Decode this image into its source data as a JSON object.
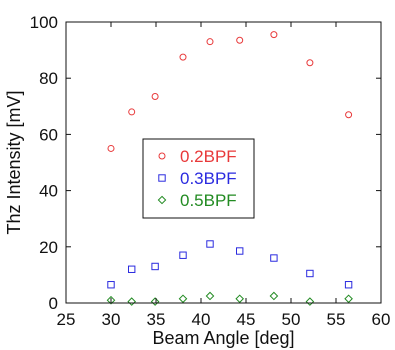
{
  "chart_data": {
    "type": "scatter",
    "title": "",
    "xlabel": "Beam Angle [deg]",
    "ylabel": "Thz Intensity [mV]",
    "xlim": [
      25,
      60
    ],
    "ylim": [
      0,
      100
    ],
    "xticks": [
      25,
      30,
      35,
      40,
      45,
      50,
      55,
      60
    ],
    "yticks": [
      0,
      20,
      40,
      60,
      80,
      100
    ],
    "grid": false,
    "legend_position": "center-left",
    "series": [
      {
        "name": "0.2BPF",
        "marker": "circle",
        "color": "#e8393a",
        "x": [
          30.0,
          32.3,
          34.9,
          38.0,
          41.0,
          44.3,
          48.1,
          52.1,
          56.4
        ],
        "y": [
          55,
          68,
          73.5,
          87.5,
          93,
          93.5,
          95.5,
          85.5,
          67
        ]
      },
      {
        "name": "0.3BPF",
        "marker": "square",
        "color": "#2a2adf",
        "x": [
          30.0,
          32.3,
          34.9,
          38.0,
          41.0,
          44.3,
          48.1,
          52.1,
          56.4
        ],
        "y": [
          6.5,
          12,
          13,
          17,
          21,
          18.5,
          16,
          10.5,
          6.5
        ]
      },
      {
        "name": "0.5BPF",
        "marker": "diamond",
        "color": "#228b22",
        "x": [
          30.0,
          32.3,
          34.9,
          38.0,
          41.0,
          44.3,
          48.1,
          52.1,
          56.4
        ],
        "y": [
          1,
          0.5,
          0.5,
          1.5,
          2.5,
          1.5,
          2.5,
          0.5,
          1.5
        ]
      }
    ]
  }
}
